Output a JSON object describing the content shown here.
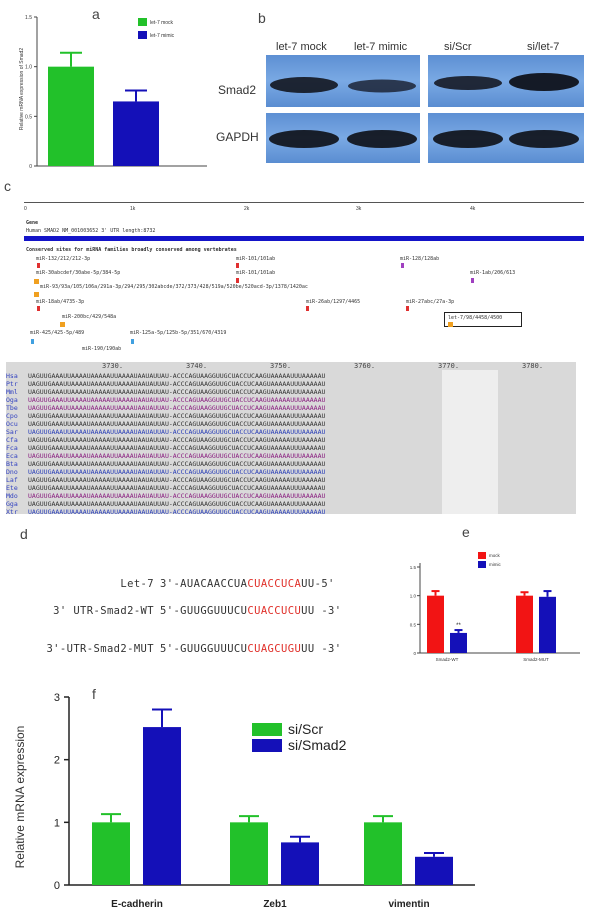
{
  "panels": {
    "a": "a",
    "b": "b",
    "c": "c",
    "d": "d",
    "e": "e",
    "f": "f"
  },
  "colors": {
    "green": "#22c12a",
    "blue": "#1410b8",
    "red": "#f21414",
    "dark": "#222222"
  },
  "chart_data": [
    {
      "panel": "a",
      "type": "bar",
      "categories": [
        "let-7 mock",
        "let-7 mimic"
      ],
      "values": [
        1.0,
        0.65
      ],
      "errors": [
        0.14,
        0.11
      ],
      "colors": [
        "#22c12a",
        "#1410b8"
      ],
      "ylim": [
        0,
        1.5
      ],
      "yticks": [
        "0",
        "0.5",
        "1.0",
        "1.5"
      ],
      "ylabel": "Relative mRNA expression of Smad2",
      "legend": [
        "let-7 mock",
        "let-7 mimic"
      ],
      "legend_position": "top-right"
    },
    {
      "panel": "e",
      "type": "bar",
      "categories": [
        "Smad2-WT",
        "Smad2-MUT"
      ],
      "series": [
        {
          "name": "mock",
          "values": [
            1.0,
            1.0
          ],
          "errors": [
            0.08,
            0.06
          ],
          "color": "#f21414"
        },
        {
          "name": "mimic",
          "values": [
            0.35,
            0.98
          ],
          "errors": [
            0.05,
            0.1
          ],
          "color": "#1410b8"
        }
      ],
      "ylim": [
        0,
        1.5
      ],
      "yticks": [
        "0",
        "0.5",
        "1.0",
        "1.5"
      ],
      "annotation": "**",
      "legend_position": "top-left"
    },
    {
      "panel": "f",
      "type": "bar",
      "categories": [
        "E-cadherin",
        "Zeb1",
        "vimentin"
      ],
      "series": [
        {
          "name": "si/Scr",
          "values": [
            1.0,
            1.0,
            1.0
          ],
          "errors": [
            0.13,
            0.1,
            0.1
          ],
          "color": "#22c12a"
        },
        {
          "name": "si/Smad2",
          "values": [
            2.52,
            0.68,
            0.45
          ],
          "errors": [
            0.28,
            0.09,
            0.06
          ],
          "color": "#1410b8"
        }
      ],
      "ylim": [
        0,
        3
      ],
      "yticks": [
        "0",
        "1",
        "2",
        "3"
      ],
      "ylabel": "Relative mRNA expression",
      "legend_position": "top-center"
    }
  ],
  "blot": {
    "lane_labels": [
      "let-7 mock",
      "let-7 mimic",
      "si/Scr",
      "si/let-7"
    ],
    "rows": [
      "Smad2",
      "GAPDH"
    ]
  },
  "panel_c": {
    "scale_ticks": [
      "0",
      "1k",
      "2k",
      "3k",
      "4k"
    ],
    "gene_header": "Gene",
    "gene_line": "Human SMAD2 NM_001003652 3' UTR length:8732",
    "conserved_title": "Conserved sites for miRNA families broadly conserved among vertebrates",
    "mirna_sites": [
      "miR-132/212/212-3p",
      "miR-1ab/206/613",
      "miR-30abcdef/30abe-5p/384-5p",
      "miR-101/101ab",
      "miR-128/128ab",
      "miR-1ab/206/613",
      "miR-93/93a/105/106a/291a-3p/294/295/302abcde/372/373/428/519a/520be/520acd-3p/1378/1420ac",
      "miR-18ab/4735-3p",
      "miR-26ab/1297/4465",
      "miR-27abc/27a-3p",
      "miR-200bc/429/548a",
      "let-7/98/4458/4500",
      "miR-425/425-5p/489",
      "miR-125a-5p/125b-5p/351/670/4319",
      "miR-190/190ab"
    ],
    "alignment_ticks": [
      "3730.",
      "3740.",
      "3750.",
      "3760.",
      "3770.",
      "3780."
    ],
    "species": [
      "Hsa",
      "Ptr",
      "Mml",
      "Oga",
      "Tbe",
      "Cpo",
      "Ocu",
      "Sar",
      "Cfa",
      "Fca",
      "Eca",
      "Bta",
      "Dno",
      "Laf",
      "Ete",
      "Mdo",
      "Gga",
      "Xtr",
      "Xla",
      "Acb"
    ],
    "alignment_seq": "UAGUUGAAAUUAAAAUAAAAAUUAAAAUAAUAUUAU-ACCCAGUAAGGUUGCUACCUCAAGUAAAAAUUUAAAAAU"
  },
  "panel_d": {
    "rows": [
      {
        "label": "Let-7",
        "prefix": "3'-AUACAACCUA",
        "highlight": "CUACCUCA",
        "suffix": "UU-5'"
      },
      {
        "label": "3' UTR-Smad2-WT",
        "prefix": "5'-GUUGGUUUCU",
        "highlight": "CUACCUCU",
        "suffix": "UU -3'"
      },
      {
        "label": "3'-UTR-Smad2-MUT",
        "prefix": "5'-GUUGGUUUCU",
        "highlight": "CUAGCUGU",
        "suffix": "UU -3'"
      }
    ]
  }
}
